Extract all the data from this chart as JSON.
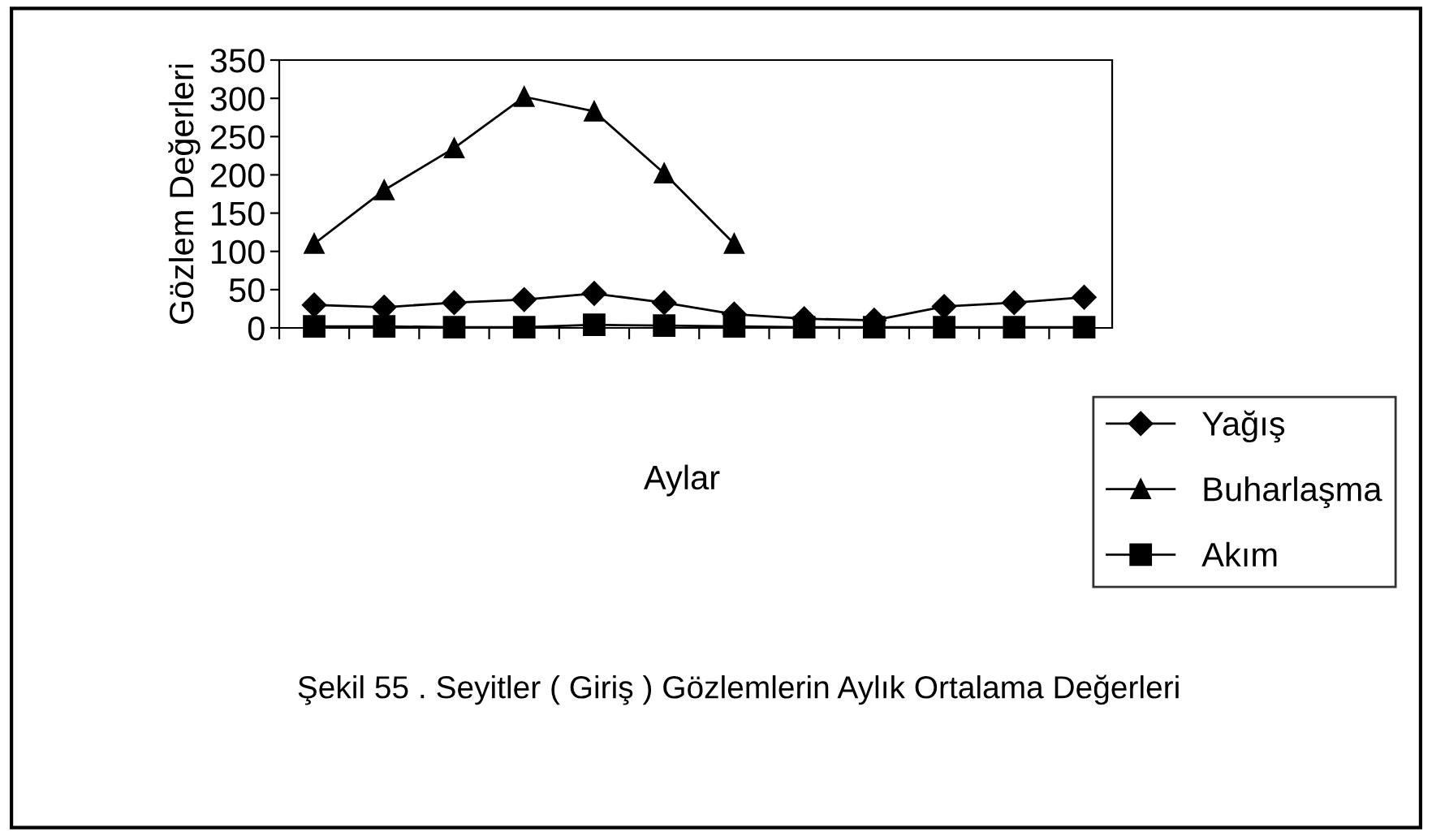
{
  "chart_data": {
    "type": "line",
    "title": "Şekil 55 . Seyitler ( Giriş ) Gözlemlerin Aylık Ortalama Değerleri",
    "xlabel": "Aylar",
    "ylabel": "Gözlem Değerleri",
    "categories": [
      null,
      null,
      null,
      null,
      null,
      null,
      null,
      null,
      null,
      null,
      null,
      null
    ],
    "series": [
      {
        "name": "Yağış",
        "color": "#000000",
        "marker": "diamond",
        "values": [
          30,
          27,
          33,
          37,
          45,
          33,
          18,
          12,
          10,
          28,
          33,
          40
        ]
      },
      {
        "name": "Buharlaşma",
        "color": "#000000",
        "marker": "triangle",
        "values": [
          110,
          180,
          235,
          302,
          283,
          202,
          110,
          null,
          null,
          null,
          null,
          null
        ]
      },
      {
        "name": "Akım",
        "color": "#000000",
        "marker": "square",
        "values": [
          2,
          2,
          1,
          1,
          4,
          3,
          2,
          1,
          1,
          1,
          1,
          1
        ]
      }
    ],
    "ylim": [
      0,
      350
    ],
    "yticks": [
      0,
      50,
      100,
      150,
      200,
      250,
      300,
      350
    ],
    "grid": false,
    "legend": "bottom right",
    "tick_labels": "y",
    "line_style": "solid"
  }
}
